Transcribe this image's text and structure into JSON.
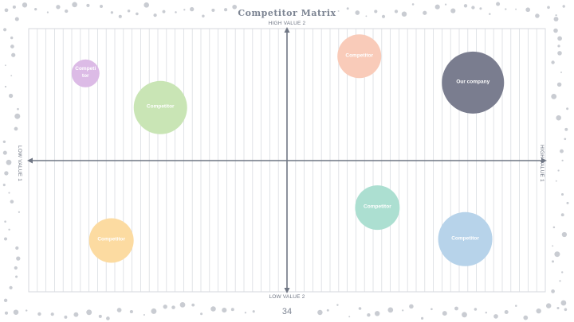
{
  "title": "Competitor Matrix",
  "page_number": "34",
  "axes": {
    "top": "HIGH VALUE 2",
    "bottom": "LOW VALUE 2",
    "left": "LOW VALUE 1",
    "right": "HIGH VALUE 1"
  },
  "colors": {
    "axis": "#6f7684",
    "grid": "#d9dce1",
    "frame": "#d4d7dc",
    "dots": "#c9ccd2"
  },
  "chart_data": {
    "type": "scatter",
    "xlim": [
      -1,
      1
    ],
    "ylim": [
      -1,
      1
    ],
    "grid": true,
    "points": [
      {
        "label": "Competitor",
        "x": -0.78,
        "y": 0.66,
        "size": 0.35,
        "color": "#dcbbe6"
      },
      {
        "label": "Competitor",
        "x": 0.28,
        "y": 0.79,
        "size": 0.55,
        "color": "#f9cbb9"
      },
      {
        "label": "Competitor",
        "x": -0.49,
        "y": 0.4,
        "size": 0.67,
        "color": "#c9e5b5"
      },
      {
        "label": "Our company",
        "x": 0.72,
        "y": 0.59,
        "size": 0.78,
        "color": "#7a7d8f"
      },
      {
        "label": "Competitor",
        "x": 0.69,
        "y": -0.6,
        "size": 0.68,
        "color": "#b7d3ea"
      },
      {
        "label": "Competitor",
        "x": 0.35,
        "y": -0.36,
        "size": 0.56,
        "color": "#acdfd1"
      },
      {
        "label": "Competitor",
        "x": -0.68,
        "y": -0.61,
        "size": 0.56,
        "color": "#fcdba1"
      }
    ]
  }
}
